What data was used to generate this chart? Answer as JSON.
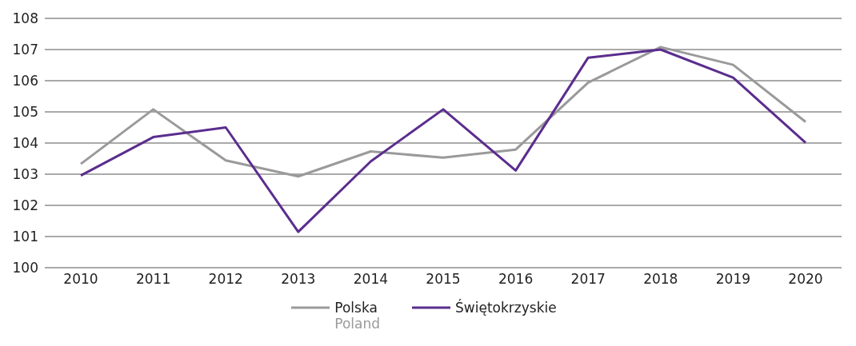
{
  "chart_data": {
    "type": "line",
    "categories": [
      "2010",
      "2011",
      "2012",
      "2013",
      "2014",
      "2015",
      "2016",
      "2017",
      "2018",
      "2019",
      "2020"
    ],
    "series": [
      {
        "name": "Polska\nPoland",
        "color": "#9a9a9a",
        "values": [
          103.33,
          105.08,
          103.44,
          102.93,
          103.73,
          103.53,
          103.79,
          105.94,
          107.08,
          106.51,
          104.68
        ]
      },
      {
        "name": "Świętokrzyskie",
        "color": "#5b2d8e",
        "values": [
          102.96,
          104.19,
          104.5,
          101.15,
          103.41,
          105.08,
          103.12,
          106.74,
          107.0,
          106.1,
          104.01
        ]
      }
    ],
    "ylim": [
      100,
      108
    ],
    "yticks": [
      100,
      101,
      102,
      103,
      104,
      105,
      106,
      107,
      108
    ],
    "grid": "y",
    "legend": "bottom",
    "marker": "none",
    "line_style": "solid"
  }
}
